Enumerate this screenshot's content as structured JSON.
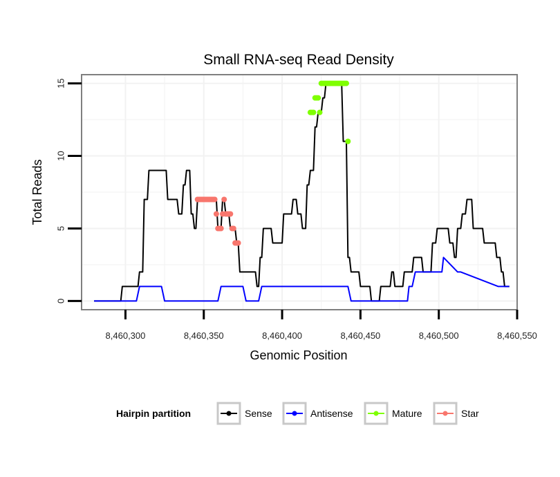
{
  "chart_data": {
    "type": "line",
    "title": "Small RNA-seq Read Density",
    "xlabel": "Genomic Position",
    "ylabel": "Total Reads",
    "xlim": [
      8460272,
      8460550
    ],
    "ylim": [
      -0.6,
      15.6
    ],
    "x_ticks": [
      8460300,
      8460350,
      8460400,
      8460450,
      8460500,
      8460550
    ],
    "x_tick_labels": [
      "8,460,300",
      "8,460,350",
      "8,460,400",
      "8,460,450",
      "8,460,500",
      "8,460,550"
    ],
    "y_ticks": [
      0,
      5,
      10,
      15
    ],
    "y_tick_labels": [
      "0",
      "5",
      "10",
      "15"
    ],
    "grid": true,
    "legend": {
      "title": "Hairpin partition",
      "position": "bottom",
      "entries": [
        "Sense",
        "Antisense",
        "Mature",
        "Star"
      ]
    },
    "series": [
      {
        "name": "Sense",
        "color": "#000000",
        "style": "line",
        "x": [
          8460280,
          8460297,
          8460298,
          8460308,
          8460309,
          8460311,
          8460312,
          8460314,
          8460315,
          8460317,
          8460318,
          8460326,
          8460327,
          8460331,
          8460332,
          8460333,
          8460334,
          8460336,
          8460337,
          8460338,
          8460339,
          8460341,
          8460342,
          8460343,
          8460344,
          8460345,
          8460346,
          8460352,
          8460353,
          8460354,
          8460355,
          8460358,
          8460359,
          8460361,
          8460362,
          8460363,
          8460364,
          8460366,
          8460367,
          8460370,
          8460371,
          8460372,
          8460373,
          8460374,
          8460375,
          8460383,
          8460384,
          8460385,
          8460386,
          8460387,
          8460388,
          8460393,
          8460394,
          8460400,
          8460401,
          8460402,
          8460403,
          8460406,
          8460407,
          8460409,
          8460410,
          8460412,
          8460413,
          8460415,
          8460416,
          8460417,
          8460418,
          8460420,
          8460421,
          8460422,
          8460423,
          8460425,
          8460426,
          8460427,
          8460428,
          8460430,
          8460431,
          8460434,
          8460435,
          8460438,
          8460439,
          8460441,
          8460442,
          8460443,
          8460444,
          8460446,
          8460447,
          8460449,
          8460450,
          8460456,
          8460457,
          8460462,
          8460463,
          8460469,
          8460470,
          8460471,
          8460472,
          8460477,
          8460478,
          8460483,
          8460484,
          8460489,
          8460490,
          8460495,
          8460496,
          8460498,
          8460499,
          8460500,
          8460501,
          8460506,
          8460507,
          8460509,
          8460510,
          8460511,
          8460512,
          8460514,
          8460515,
          8460517,
          8460518,
          8460521,
          8460522,
          8460524,
          8460525,
          8460528,
          8460529,
          8460531,
          8460532,
          8460536,
          8460537,
          8460539,
          8460540,
          8460541,
          8460542,
          8460543,
          8460544,
          8460545
        ],
        "y": [
          0,
          0,
          1,
          1,
          2,
          2,
          7,
          7,
          9,
          9,
          9,
          9,
          7,
          7,
          7,
          7,
          6,
          6,
          8,
          8,
          9,
          9,
          6,
          6,
          5,
          5,
          7,
          7,
          7,
          7,
          7,
          7,
          5,
          5,
          7,
          7,
          6,
          6,
          5,
          5,
          4,
          4,
          2,
          2,
          2,
          2,
          1,
          1,
          3,
          3,
          5,
          5,
          4,
          4,
          6,
          6,
          6,
          6,
          7,
          7,
          6,
          6,
          5,
          5,
          8,
          8,
          9,
          9,
          12,
          12,
          13,
          13,
          14,
          14,
          15,
          15,
          15,
          15,
          15,
          15,
          11,
          11,
          3,
          3,
          2,
          2,
          2,
          2,
          1,
          1,
          0,
          0,
          1,
          1,
          2,
          2,
          1,
          1,
          2,
          2,
          3,
          3,
          2,
          2,
          4,
          4,
          5,
          5,
          5,
          5,
          4,
          4,
          3,
          3,
          5,
          5,
          6,
          6,
          7,
          7,
          5,
          5,
          5,
          5,
          4,
          4,
          4,
          4,
          3,
          3,
          2,
          2,
          1,
          1,
          1,
          1
        ]
      },
      {
        "name": "Antisense",
        "color": "#0000ff",
        "style": "line",
        "x": [
          8460280,
          8460307,
          8460309,
          8460323,
          8460325,
          8460342,
          8460344,
          8460359,
          8460361,
          8460375,
          8460377,
          8460385,
          8460387,
          8460412,
          8460414,
          8460442,
          8460444,
          8460480,
          8460481,
          8460483,
          8460485,
          8460502,
          8460503,
          8460512,
          8460514,
          8460538,
          8460545
        ],
        "y": [
          0,
          0,
          1,
          1,
          0,
          0,
          0,
          0,
          1,
          1,
          0,
          0,
          1,
          1,
          1,
          1,
          0,
          0,
          1,
          1,
          2,
          2,
          3,
          2,
          2,
          1,
          1
        ]
      },
      {
        "name": "Mature",
        "color": "#7fff00",
        "style": "points",
        "x": [
          8460418,
          8460419,
          8460420,
          8460421,
          8460422,
          8460423,
          8460424,
          8460425,
          8460426,
          8460427,
          8460428,
          8460429,
          8460430,
          8460431,
          8460432,
          8460433,
          8460434,
          8460435,
          8460436,
          8460437,
          8460438,
          8460439,
          8460440,
          8460441,
          8460442
        ],
        "y": [
          13,
          13,
          13,
          14,
          14,
          14,
          13,
          15,
          15,
          15,
          15,
          15,
          15,
          15,
          15,
          15,
          15,
          15,
          15,
          15,
          15,
          15,
          15,
          15,
          11
        ]
      },
      {
        "name": "Star",
        "color": "#f8766d",
        "style": "points",
        "x": [
          8460346,
          8460347,
          8460348,
          8460349,
          8460350,
          8460351,
          8460352,
          8460353,
          8460354,
          8460355,
          8460356,
          8460357,
          8460358,
          8460359,
          8460360,
          8460361,
          8460362,
          8460363,
          8460364,
          8460365,
          8460366,
          8460367,
          8460368,
          8460369,
          8460370,
          8460371,
          8460372
        ],
        "y": [
          7,
          7,
          7,
          7,
          7,
          7,
          7,
          7,
          7,
          7,
          7,
          7,
          6,
          5,
          5,
          5,
          6,
          7,
          6,
          6,
          6,
          6,
          5,
          5,
          4,
          4,
          4
        ]
      }
    ]
  }
}
